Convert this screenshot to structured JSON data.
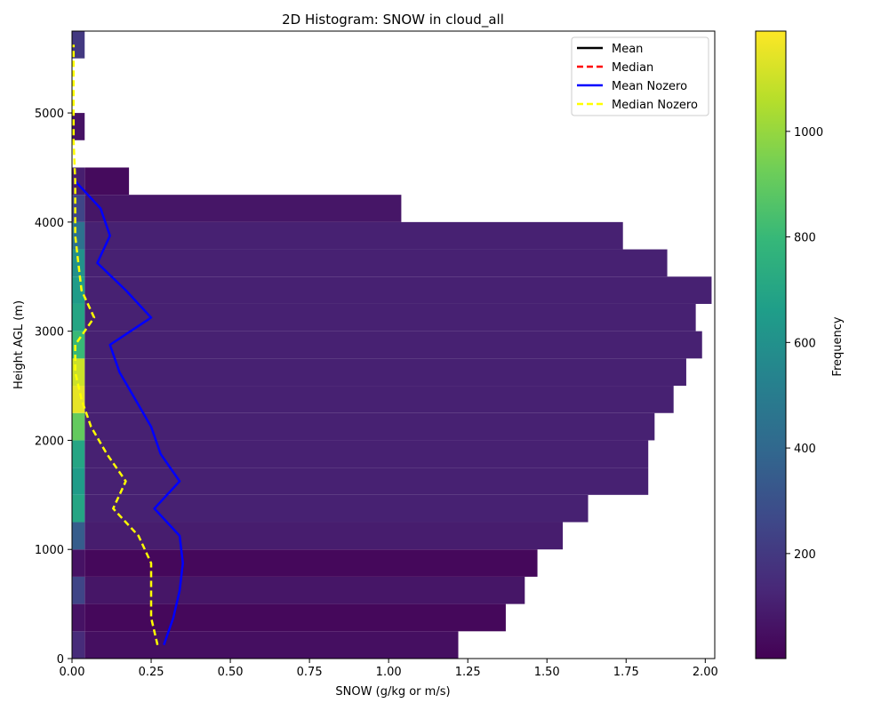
{
  "chart_data": {
    "type": "heatmap",
    "title": "2D Histogram: SNOW in cloud_all",
    "xlabel": "SNOW (g/kg or m/s)",
    "ylabel": "Height AGL (m)",
    "xlim": [
      0,
      2.03
    ],
    "ylim": [
      0,
      5750
    ],
    "xticks": [
      "0.00",
      "0.25",
      "0.50",
      "0.75",
      "1.00",
      "1.25",
      "1.50",
      "1.75",
      "2.00"
    ],
    "yticks": [
      "0",
      "1000",
      "2000",
      "3000",
      "4000",
      "5000"
    ],
    "colorbar": {
      "label": "Frequency",
      "range": [
        1,
        1190
      ],
      "ticks": [
        "200",
        "400",
        "600",
        "800",
        "1000"
      ],
      "colormap": [
        "#440154",
        "#482878",
        "#3e4989",
        "#31688e",
        "#26828e",
        "#1f9e89",
        "#35b779",
        "#6ece58",
        "#b5de2b",
        "#fde725"
      ]
    },
    "heatmap": {
      "height_bin_m": 250,
      "row_extent_x": [
        {
          "y": 125,
          "x_max": 1.22
        },
        {
          "y": 375,
          "x_max": 1.37
        },
        {
          "y": 625,
          "x_max": 1.43
        },
        {
          "y": 875,
          "x_max": 1.47
        },
        {
          "y": 1125,
          "x_max": 1.55
        },
        {
          "y": 1375,
          "x_max": 1.63
        },
        {
          "y": 1625,
          "x_max": 1.82
        },
        {
          "y": 1875,
          "x_max": 1.82
        },
        {
          "y": 2125,
          "x_max": 1.84
        },
        {
          "y": 2375,
          "x_max": 1.9
        },
        {
          "y": 2625,
          "x_max": 1.94
        },
        {
          "y": 2875,
          "x_max": 1.99
        },
        {
          "y": 3125,
          "x_max": 1.97
        },
        {
          "y": 3375,
          "x_max": 2.02
        },
        {
          "y": 3625,
          "x_max": 1.88
        },
        {
          "y": 3875,
          "x_max": 1.74
        },
        {
          "y": 4125,
          "x_max": 1.04
        },
        {
          "y": 4375,
          "x_max": 0.18
        },
        {
          "y": 4875,
          "x_max": 0.03
        },
        {
          "y": 5625,
          "x_max": 0.01
        }
      ],
      "first_column_frequency": [
        {
          "y": 125,
          "value": 150
        },
        {
          "y": 625,
          "value": 250
        },
        {
          "y": 1125,
          "value": 350
        },
        {
          "y": 1375,
          "value": 700
        },
        {
          "y": 1625,
          "value": 650
        },
        {
          "y": 1875,
          "value": 700
        },
        {
          "y": 2125,
          "value": 900
        },
        {
          "y": 2375,
          "value": 1150
        },
        {
          "y": 2625,
          "value": 1100
        },
        {
          "y": 2875,
          "value": 800
        },
        {
          "y": 3125,
          "value": 700
        },
        {
          "y": 3375,
          "value": 650
        },
        {
          "y": 3625,
          "value": 600
        },
        {
          "y": 3875,
          "value": 450
        },
        {
          "y": 4125,
          "value": 250
        },
        {
          "y": 4375,
          "value": 100
        },
        {
          "y": 5625,
          "value": 200
        }
      ]
    },
    "series": [
      {
        "name": "Mean",
        "color": "#000000",
        "dash": "solid",
        "points": []
      },
      {
        "name": "Median",
        "color": "#ff0000",
        "dash": "dashed",
        "points": []
      },
      {
        "name": "Mean Nozero",
        "color": "#0000ff",
        "dash": "solid",
        "points": [
          [
            0.29,
            125
          ],
          [
            0.32,
            375
          ],
          [
            0.34,
            625
          ],
          [
            0.35,
            875
          ],
          [
            0.34,
            1125
          ],
          [
            0.26,
            1375
          ],
          [
            0.34,
            1625
          ],
          [
            0.28,
            1875
          ],
          [
            0.25,
            2125
          ],
          [
            0.2,
            2375
          ],
          [
            0.15,
            2625
          ],
          [
            0.12,
            2875
          ],
          [
            0.25,
            3125
          ],
          [
            0.17,
            3375
          ],
          [
            0.08,
            3625
          ],
          [
            0.12,
            3875
          ],
          [
            0.09,
            4125
          ],
          [
            0.01,
            4375
          ]
        ]
      },
      {
        "name": "Median Nozero",
        "color": "#ffff00",
        "dash": "dashed",
        "points": [
          [
            0.27,
            125
          ],
          [
            0.25,
            375
          ],
          [
            0.25,
            625
          ],
          [
            0.25,
            875
          ],
          [
            0.21,
            1125
          ],
          [
            0.13,
            1375
          ],
          [
            0.17,
            1625
          ],
          [
            0.11,
            1875
          ],
          [
            0.06,
            2125
          ],
          [
            0.03,
            2375
          ],
          [
            0.01,
            2625
          ],
          [
            0.01,
            2875
          ],
          [
            0.07,
            3125
          ],
          [
            0.03,
            3375
          ],
          [
            0.02,
            3625
          ],
          [
            0.01,
            3875
          ],
          [
            0.01,
            4125
          ],
          [
            0.01,
            4375
          ],
          [
            0.005,
            4750
          ],
          [
            0.005,
            5250
          ],
          [
            0.005,
            5625
          ]
        ]
      }
    ],
    "legend": {
      "location": "top-right"
    }
  }
}
